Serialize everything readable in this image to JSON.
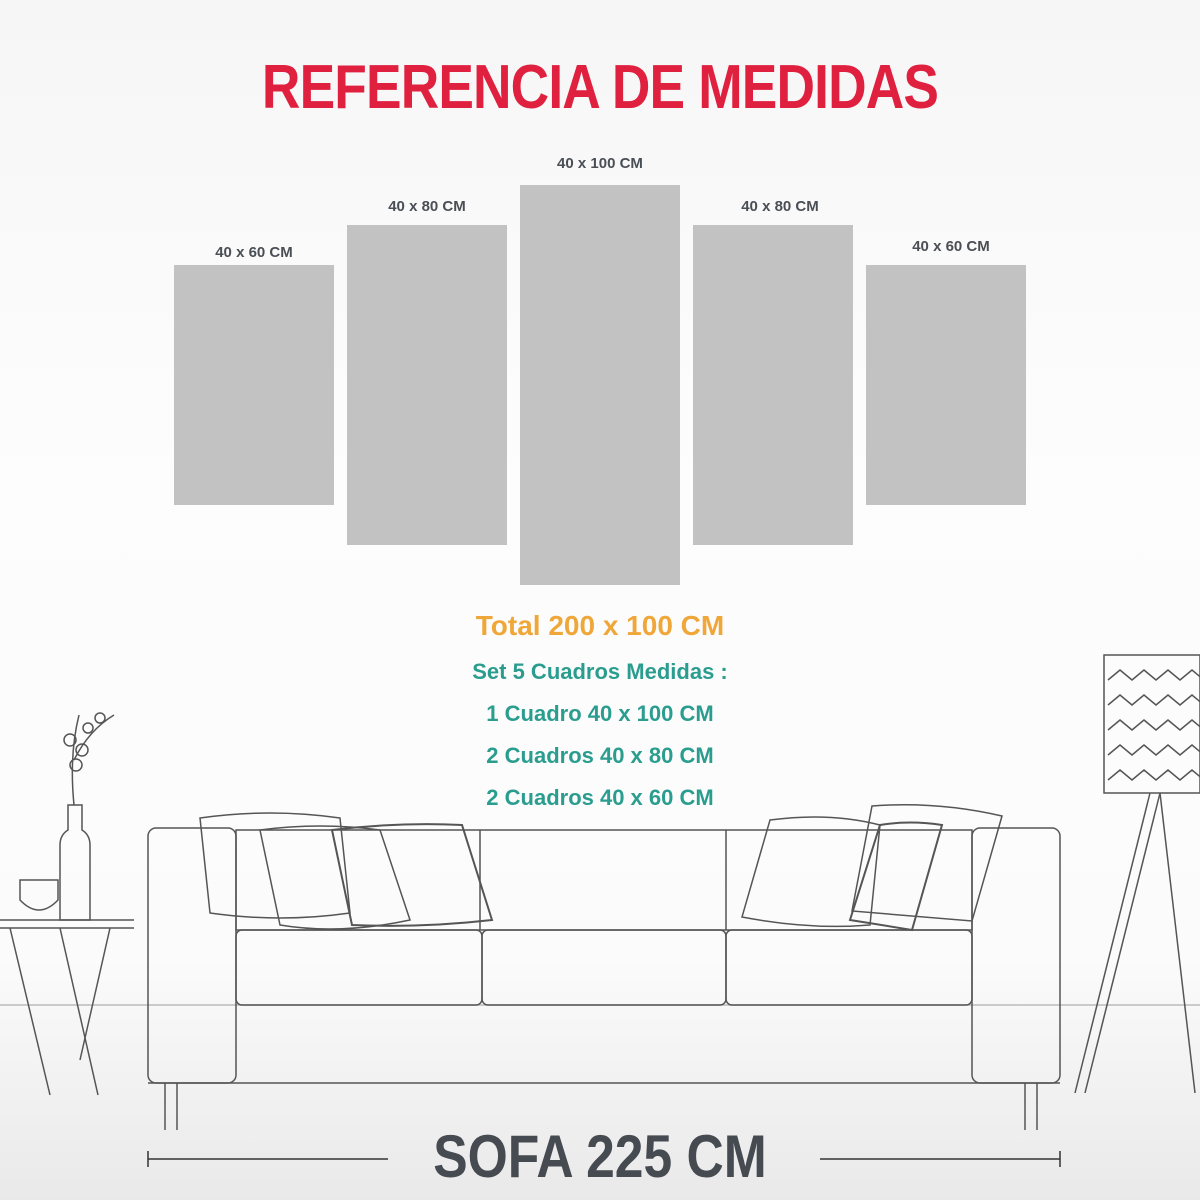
{
  "title": "REFERENCIA DE MEDIDAS",
  "panels": [
    {
      "label": "40 x 60 CM",
      "width_cm": 40,
      "height_cm": 60
    },
    {
      "label": "40 x 80 CM",
      "width_cm": 40,
      "height_cm": 80
    },
    {
      "label": "40 x 100 CM",
      "width_cm": 40,
      "height_cm": 100
    },
    {
      "label": "40 x 80 CM",
      "width_cm": 40,
      "height_cm": 80
    },
    {
      "label": "40 x 60 CM",
      "width_cm": 40,
      "height_cm": 60
    }
  ],
  "total": "Total 200 x 100 CM",
  "set_heading": "Set 5 Cuadros Medidas :",
  "set_items": [
    "1 Cuadro 40 x 100 CM",
    "2 Cuadros 40 x 80 CM",
    "2 Cuadros 40 x 60 CM"
  ],
  "sofa_label": "SOFA 225 CM",
  "colors": {
    "title": "#e0203f",
    "total": "#f0a73a",
    "set": "#2a9d8f",
    "panel": "#c2c2c2",
    "text": "#4a4f55"
  }
}
